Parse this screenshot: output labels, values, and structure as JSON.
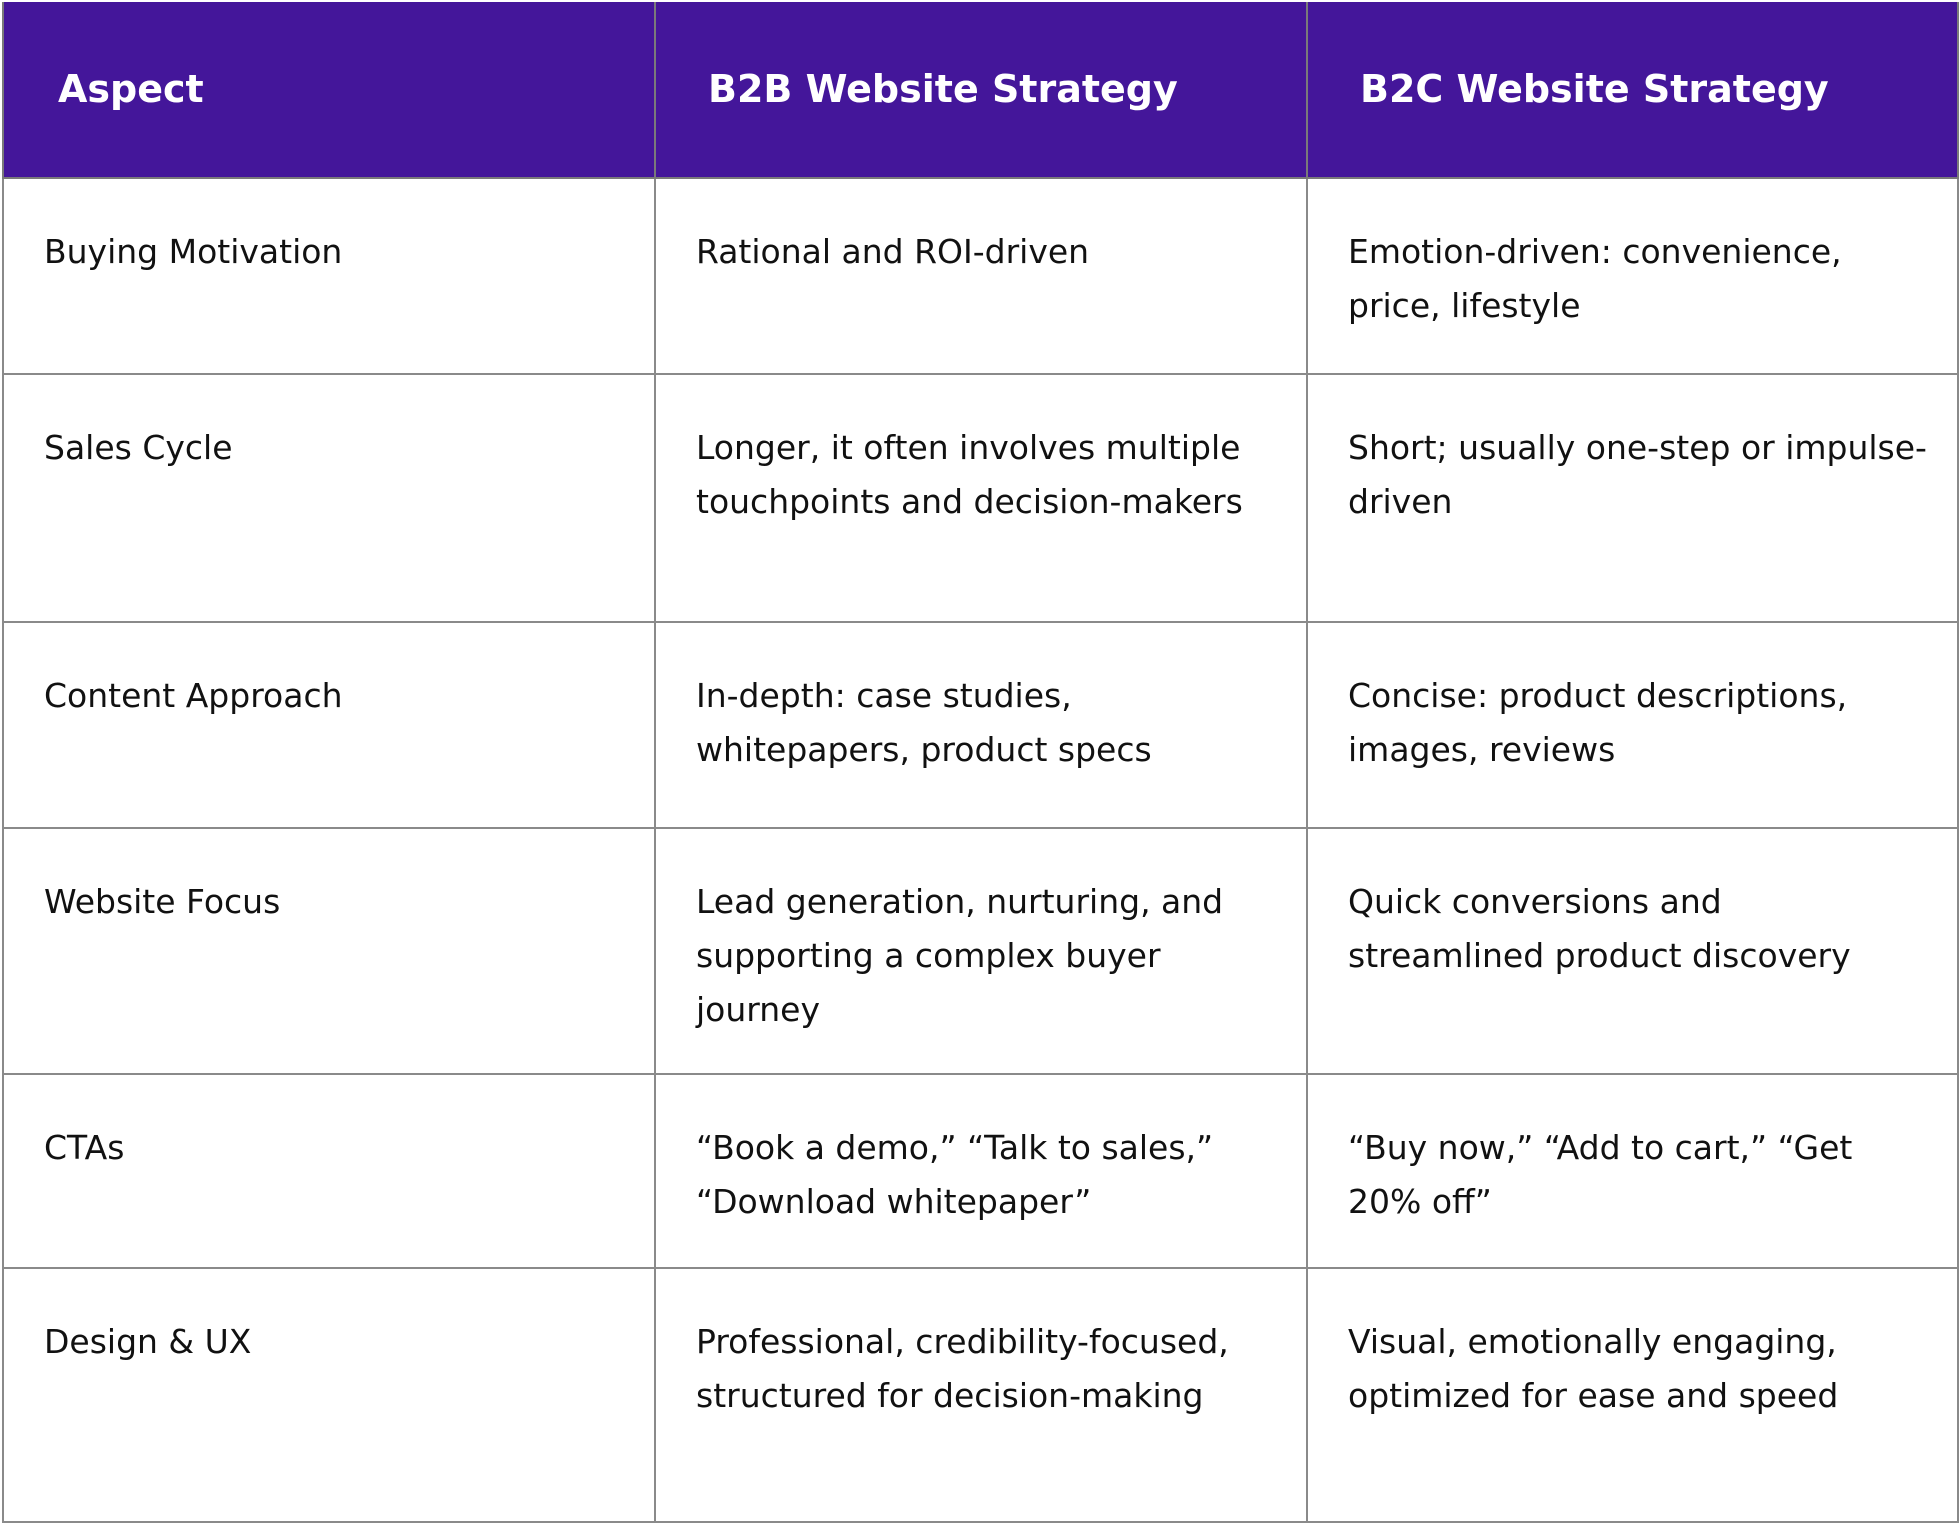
{
  "headers": [
    "Aspect",
    "B2B Website Strategy",
    "B2C Website Strategy"
  ],
  "rows": [
    [
      "Buying Motivation",
      "Rational and ROI-driven",
      "Emotion-driven: convenience, price, lifestyle"
    ],
    [
      "Sales Cycle",
      "Longer, it often involves multiple touchpoints and decision-makers",
      "Short; usually one-step or impulse-driven"
    ],
    [
      "Content Approach",
      "In-depth: case studies, whitepapers, product specs",
      "Concise: product descriptions, images, reviews"
    ],
    [
      "Website Focus",
      "Lead generation, nurturing, and supporting a complex buyer journey",
      "Quick conversions and streamlined product discovery"
    ],
    [
      "CTAs",
      "“Book a demo,” “Talk to sales,” “Download whitepaper”",
      "“Buy now,” “Add to cart,” “Get 20% off”"
    ],
    [
      "Design & UX",
      "Professional, credibility-focused, structured for decision-making",
      "Visual, emotionally engaging, optimized for ease and speed"
    ]
  ],
  "colors": {
    "header_bg": "#44169a",
    "header_text": "#ffffff",
    "border": "#8a8a8a"
  }
}
